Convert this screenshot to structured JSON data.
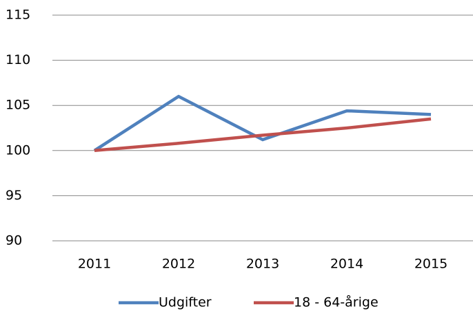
{
  "chart_data": {
    "type": "line",
    "categories": [
      "2011",
      "2012",
      "2013",
      "2014",
      "2015"
    ],
    "series": [
      {
        "name": "Udgifter",
        "color": "#4f81bd",
        "values": [
          100,
          106.0,
          101.2,
          104.4,
          104.0
        ]
      },
      {
        "name": "18 - 64-årige",
        "color": "#c0504d",
        "values": [
          100,
          100.8,
          101.7,
          102.5,
          103.5
        ]
      }
    ],
    "ylim": [
      90,
      115
    ],
    "yticks": [
      90,
      95,
      100,
      105,
      110,
      115
    ],
    "grid": true,
    "legend": "bottom"
  }
}
